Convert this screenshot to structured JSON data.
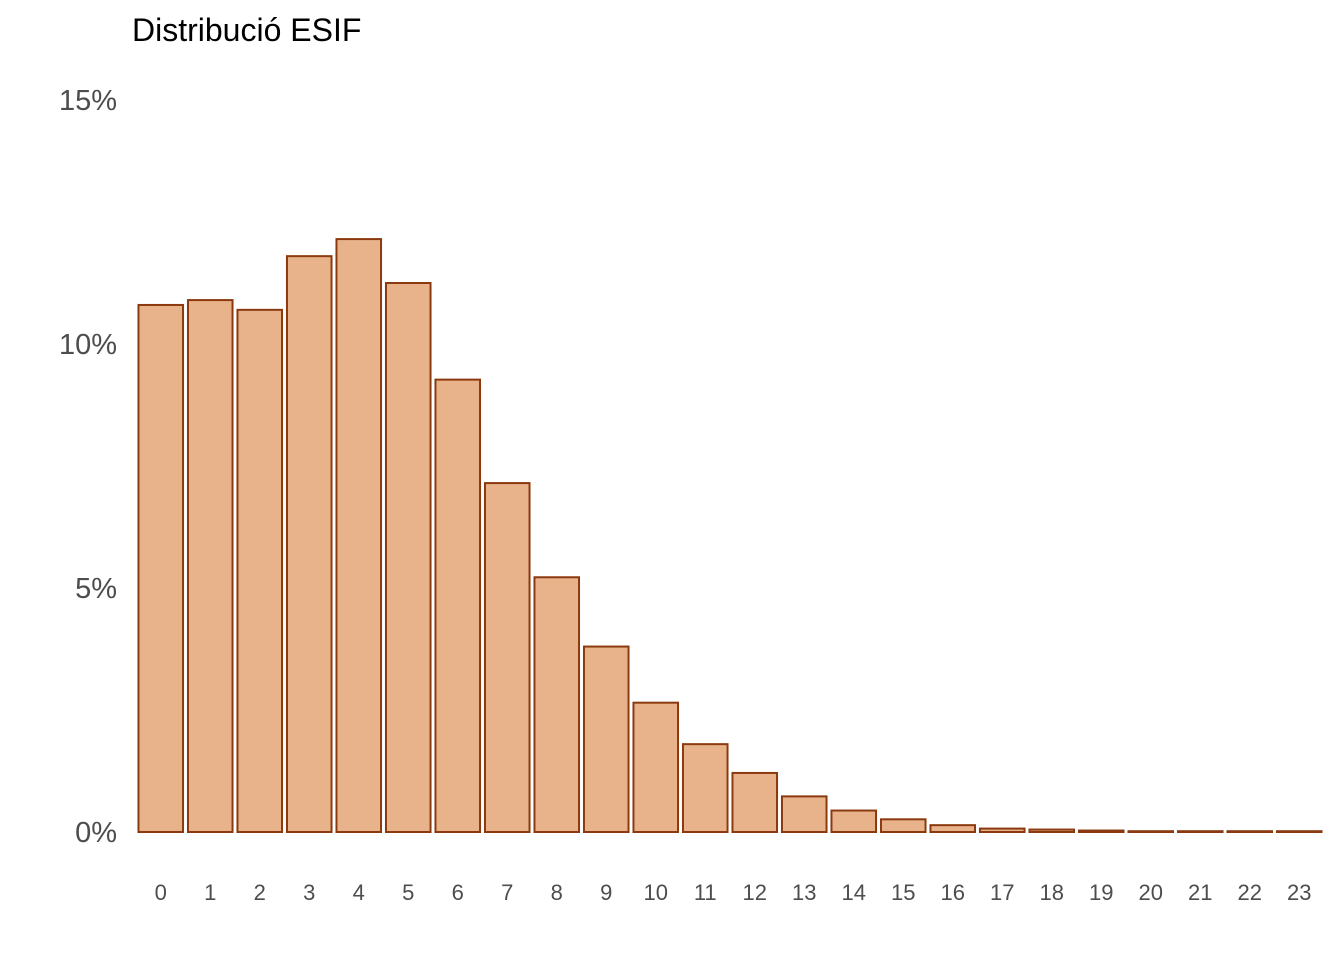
{
  "chart_data": {
    "type": "bar",
    "title": "Distribució ESIF",
    "xlabel": "",
    "ylabel": "",
    "categories": [
      "0",
      "1",
      "2",
      "3",
      "4",
      "5",
      "6",
      "7",
      "8",
      "9",
      "10",
      "11",
      "12",
      "13",
      "14",
      "15",
      "16",
      "17",
      "18",
      "19",
      "20",
      "21",
      "22",
      "23"
    ],
    "values": [
      10.8,
      10.9,
      10.7,
      11.8,
      12.15,
      11.25,
      9.27,
      7.15,
      5.22,
      3.8,
      2.65,
      1.8,
      1.21,
      0.73,
      0.44,
      0.26,
      0.14,
      0.07,
      0.05,
      0.03,
      0.01,
      0.005,
      0.003,
      0.002
    ],
    "ylim": [
      0,
      15
    ],
    "yticks": [
      0,
      5,
      10,
      15
    ],
    "ytick_labels": [
      "0%",
      "5%",
      "10%",
      "15%"
    ],
    "grid": false,
    "legend": "none",
    "colors": {
      "bar_fill": "#e8b38b",
      "bar_stroke": "#8b3a0f",
      "tick_text": "#4d4d4d",
      "title_text": "#000000"
    }
  }
}
